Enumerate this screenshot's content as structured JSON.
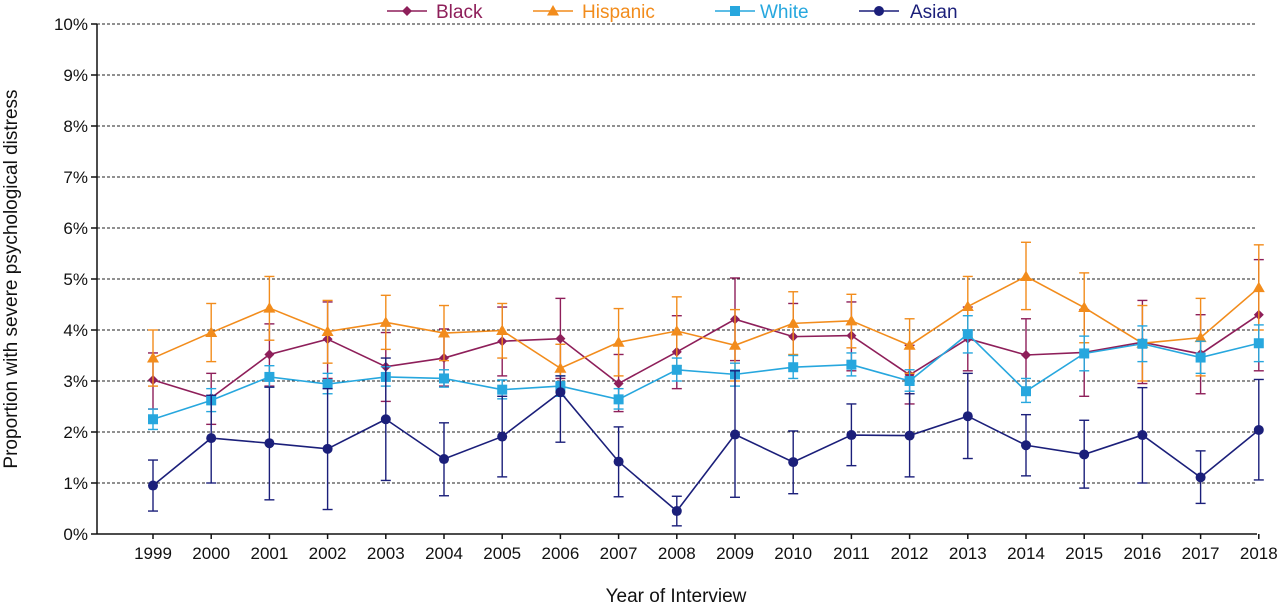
{
  "chart_data": {
    "type": "line",
    "title": "",
    "xlabel": "Year of Interview",
    "ylabel": "Proportion with severe psychological distress",
    "x": [
      "1999",
      "2000",
      "2001",
      "2002",
      "2003",
      "2004",
      "2005",
      "2006",
      "2007",
      "2008",
      "2009",
      "2010",
      "2011",
      "2012",
      "2013",
      "2014",
      "2015",
      "2016",
      "2017",
      "2018"
    ],
    "ylim": [
      0,
      10
    ],
    "yticks": [
      "0%",
      "1%",
      "2%",
      "3%",
      "4%",
      "5%",
      "6%",
      "7%",
      "8%",
      "9%",
      "10%"
    ],
    "grid": "horizontal dashed",
    "legend_position": "top",
    "error_bars": true,
    "series": [
      {
        "name": "Black",
        "color": "#8e1f5a",
        "marker": "diamond",
        "values": [
          3.02,
          2.67,
          3.52,
          3.82,
          3.28,
          3.45,
          3.78,
          3.83,
          2.95,
          3.57,
          4.21,
          3.87,
          3.89,
          3.12,
          3.83,
          3.51,
          3.56,
          3.76,
          3.53,
          4.3
        ],
        "lower": [
          2.45,
          2.15,
          2.9,
          3.05,
          2.6,
          2.9,
          3.1,
          3.05,
          2.4,
          2.85,
          3.4,
          3.25,
          3.2,
          2.55,
          3.2,
          2.8,
          2.7,
          2.95,
          2.75,
          3.2
        ],
        "upper": [
          3.55,
          3.15,
          4.12,
          4.55,
          3.95,
          4.02,
          4.45,
          4.62,
          3.52,
          4.28,
          5.02,
          4.52,
          4.55,
          3.7,
          4.45,
          4.22,
          4.4,
          4.58,
          4.3,
          5.38
        ]
      },
      {
        "name": "Hispanic",
        "color": "#f28c1c",
        "marker": "triangle",
        "values": [
          3.45,
          3.95,
          4.43,
          3.97,
          4.15,
          3.94,
          3.99,
          3.25,
          3.76,
          3.98,
          3.7,
          4.13,
          4.18,
          3.7,
          4.46,
          5.05,
          4.44,
          3.74,
          3.85,
          4.83
        ],
        "lower": [
          2.9,
          3.38,
          3.8,
          3.35,
          3.62,
          3.4,
          3.45,
          2.8,
          3.1,
          3.3,
          3.0,
          3.52,
          3.65,
          3.15,
          3.85,
          4.4,
          3.75,
          3.0,
          3.1,
          4.0
        ],
        "upper": [
          4.0,
          4.52,
          5.05,
          4.58,
          4.68,
          4.48,
          4.52,
          3.72,
          4.42,
          4.65,
          4.4,
          4.75,
          4.7,
          4.22,
          5.05,
          5.72,
          5.12,
          4.48,
          4.62,
          5.67
        ]
      },
      {
        "name": "White",
        "color": "#27a7de",
        "marker": "square",
        "values": [
          2.25,
          2.62,
          3.08,
          2.94,
          3.08,
          3.05,
          2.83,
          2.9,
          2.64,
          3.22,
          3.13,
          3.27,
          3.32,
          3.0,
          3.92,
          2.8,
          3.54,
          3.73,
          3.46,
          3.74
        ],
        "lower": [
          2.05,
          2.4,
          2.88,
          2.75,
          2.9,
          2.88,
          2.65,
          2.7,
          2.45,
          3.0,
          2.9,
          3.05,
          3.1,
          2.8,
          3.55,
          2.58,
          3.2,
          3.38,
          3.15,
          3.38
        ],
        "upper": [
          2.45,
          2.85,
          3.3,
          3.15,
          3.28,
          3.22,
          3.02,
          3.1,
          2.85,
          3.45,
          3.35,
          3.5,
          3.55,
          3.22,
          4.28,
          3.05,
          3.88,
          4.08,
          3.78,
          4.1
        ]
      },
      {
        "name": "Asian",
        "color": "#1b1f7a",
        "marker": "circle",
        "values": [
          0.95,
          1.88,
          1.78,
          1.67,
          2.25,
          1.47,
          1.91,
          2.78,
          1.42,
          0.45,
          1.95,
          1.41,
          1.94,
          1.93,
          2.31,
          1.74,
          1.56,
          1.94,
          1.11,
          2.04
        ],
        "lower": [
          0.45,
          1.0,
          0.67,
          0.48,
          1.05,
          0.75,
          1.12,
          1.8,
          0.73,
          0.16,
          0.72,
          0.79,
          1.34,
          1.12,
          1.48,
          1.14,
          0.9,
          1.0,
          0.6,
          1.06
        ],
        "upper": [
          1.45,
          2.72,
          2.88,
          2.85,
          3.45,
          2.18,
          2.7,
          3.1,
          2.1,
          0.74,
          3.2,
          2.02,
          2.55,
          2.75,
          3.15,
          2.34,
          2.23,
          2.87,
          1.63,
          3.03
        ]
      }
    ]
  }
}
